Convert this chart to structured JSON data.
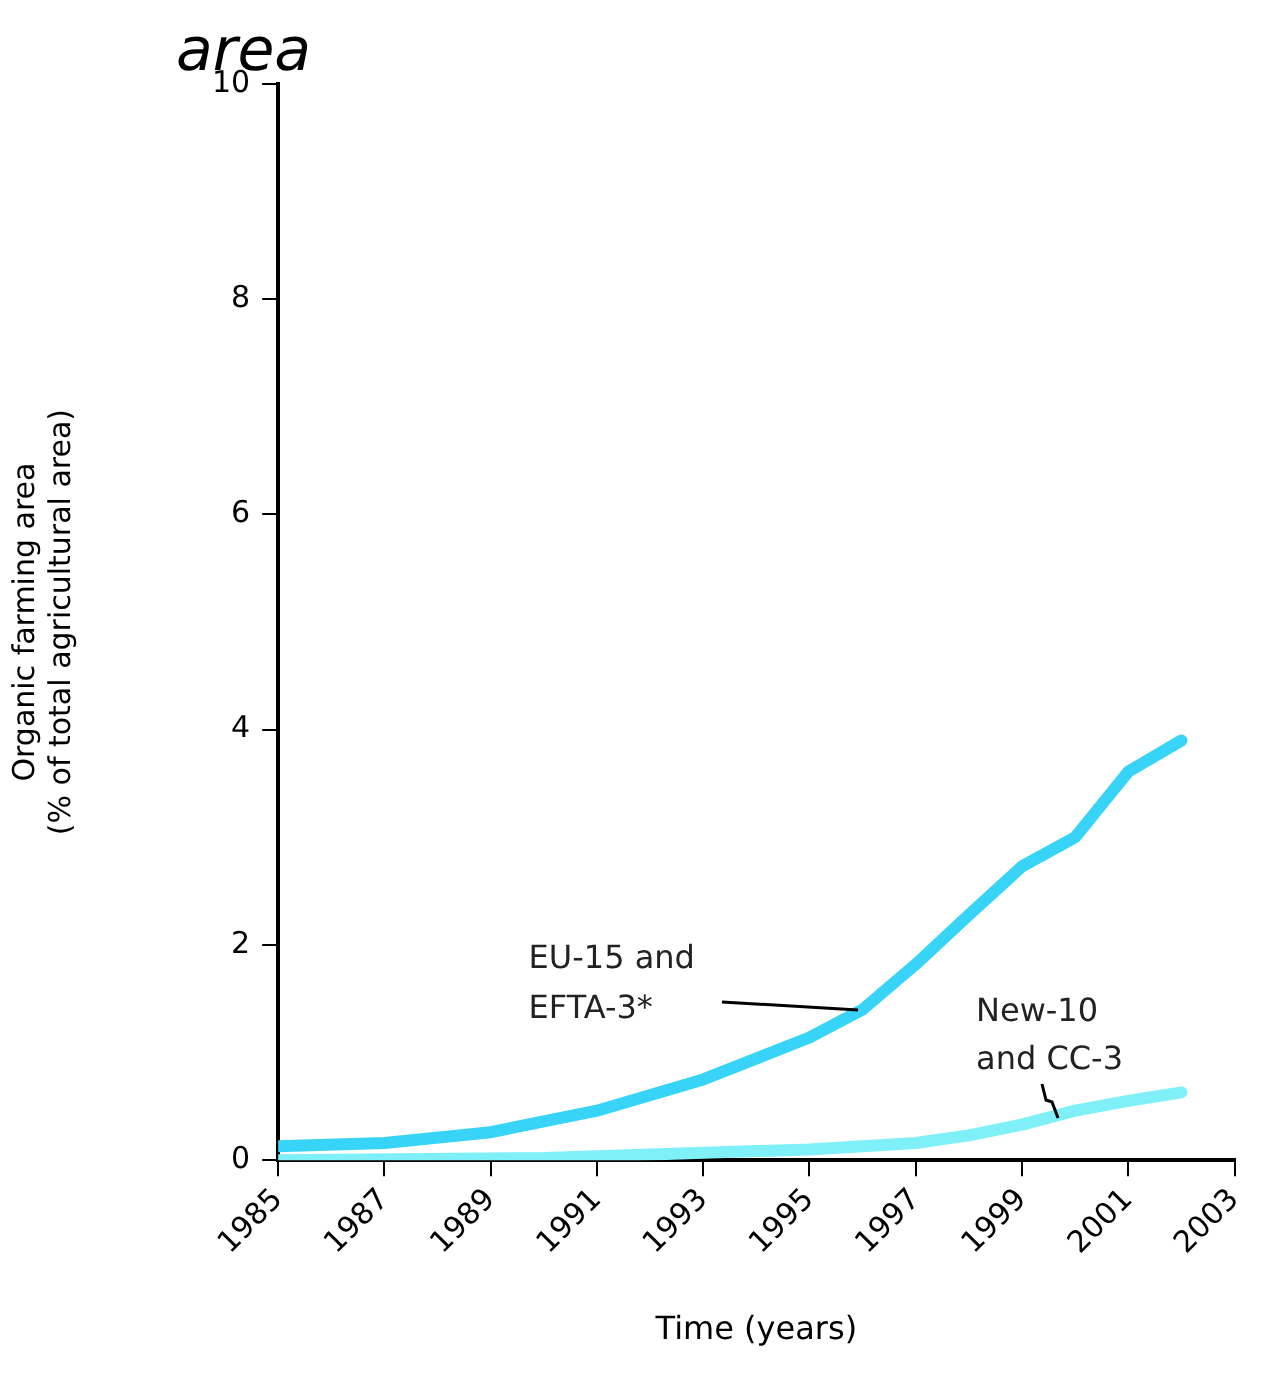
{
  "chart_data": {
    "type": "line",
    "title": "area",
    "xlabel": "Time (years)",
    "ylabel": "Organic farming area (% of total agricultural area)",
    "xlim": [
      1985,
      2003
    ],
    "xticks": [
      1985,
      1987,
      1989,
      1991,
      1993,
      1995,
      1997,
      1999,
      2001,
      2003
    ],
    "ylim": [
      0,
      10
    ],
    "yticks": [
      0,
      2,
      4,
      6,
      8,
      10
    ],
    "grid": false,
    "legend": false,
    "marker": "none",
    "line_style": "solid",
    "series": [
      {
        "name": "EU-15 and EFTA-3*",
        "color": "#38d4f8",
        "x": [
          1985,
          1987,
          1989,
          1991,
          1993,
          1995,
          1996,
          1997,
          1998,
          1999,
          2000,
          2001,
          2002
        ],
        "values": [
          0.13,
          0.16,
          0.26,
          0.46,
          0.75,
          1.14,
          1.4,
          1.82,
          2.28,
          2.73,
          3.0,
          3.61,
          3.9
        ]
      },
      {
        "name": "New-10 and CC-3",
        "color": "#80f0f8",
        "x": [
          1985,
          1990,
          1995,
          1997,
          1998,
          1999,
          2000,
          2001,
          2002
        ],
        "values": [
          0.0,
          0.02,
          0.1,
          0.16,
          0.23,
          0.33,
          0.46,
          0.55,
          0.63
        ]
      }
    ]
  }
}
